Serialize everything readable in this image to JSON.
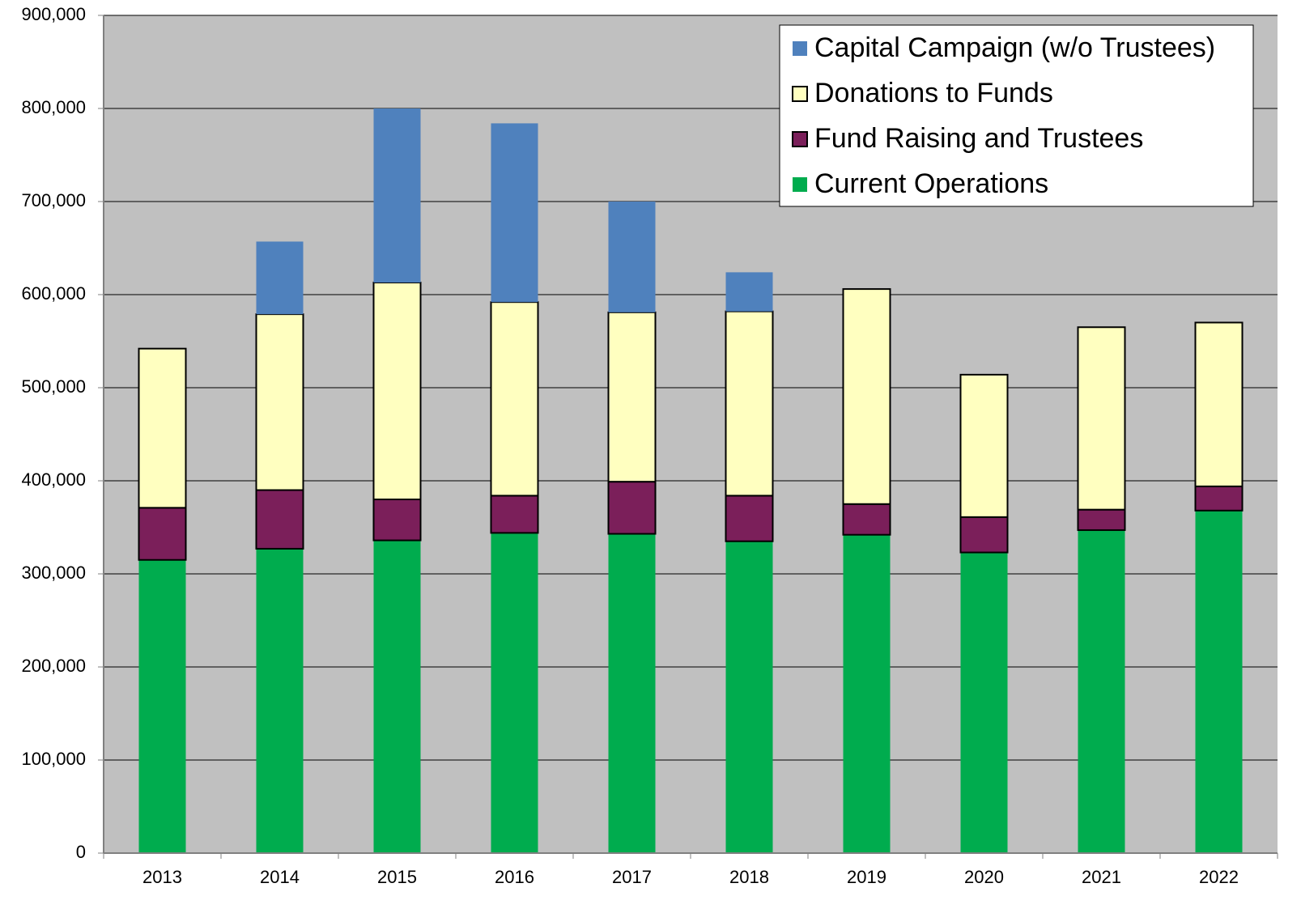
{
  "chart_data": {
    "type": "stacked_bar",
    "categories": [
      "2013",
      "2014",
      "2015",
      "2016",
      "2017",
      "2018",
      "2019",
      "2020",
      "2021",
      "2022"
    ],
    "series": [
      {
        "name": "Current Operations",
        "color": "#00ac4e",
        "values": [
          315000,
          327000,
          336000,
          344000,
          343000,
          335000,
          342000,
          323000,
          347000,
          368000
        ]
      },
      {
        "name": "Fund Raising and Trustees",
        "color": "#7b1f5a",
        "values": [
          56000,
          63000,
          44000,
          40000,
          56000,
          49000,
          33000,
          38000,
          22000,
          26000
        ]
      },
      {
        "name": "Donations to Funds",
        "color": "#ffffc0",
        "values": [
          171000,
          189000,
          233000,
          208000,
          182000,
          198000,
          231000,
          153000,
          196000,
          176000
        ]
      },
      {
        "name": "Capital Campaign (w/o Trustees)",
        "color": "#4f81bd",
        "values": [
          0,
          78000,
          187000,
          192000,
          119000,
          42000,
          0,
          0,
          0,
          0
        ]
      }
    ],
    "ylim": [
      0,
      900000
    ],
    "yticks": [
      0,
      {
        "value": 100000,
        "label": "100,000"
      },
      {
        "value": 200000,
        "label": "200,000"
      },
      {
        "value": 300000,
        "label": "300,000"
      },
      {
        "value": 400000,
        "label": "400,000"
      },
      {
        "value": 500000,
        "label": "500,000"
      },
      {
        "value": 600000,
        "label": "600,000"
      },
      {
        "value": 700000,
        "label": "700,000"
      },
      {
        "value": 800000,
        "label": "800,000"
      },
      {
        "value": 900000,
        "label": "900,000"
      }
    ],
    "grid": true,
    "legend": "upper right"
  }
}
